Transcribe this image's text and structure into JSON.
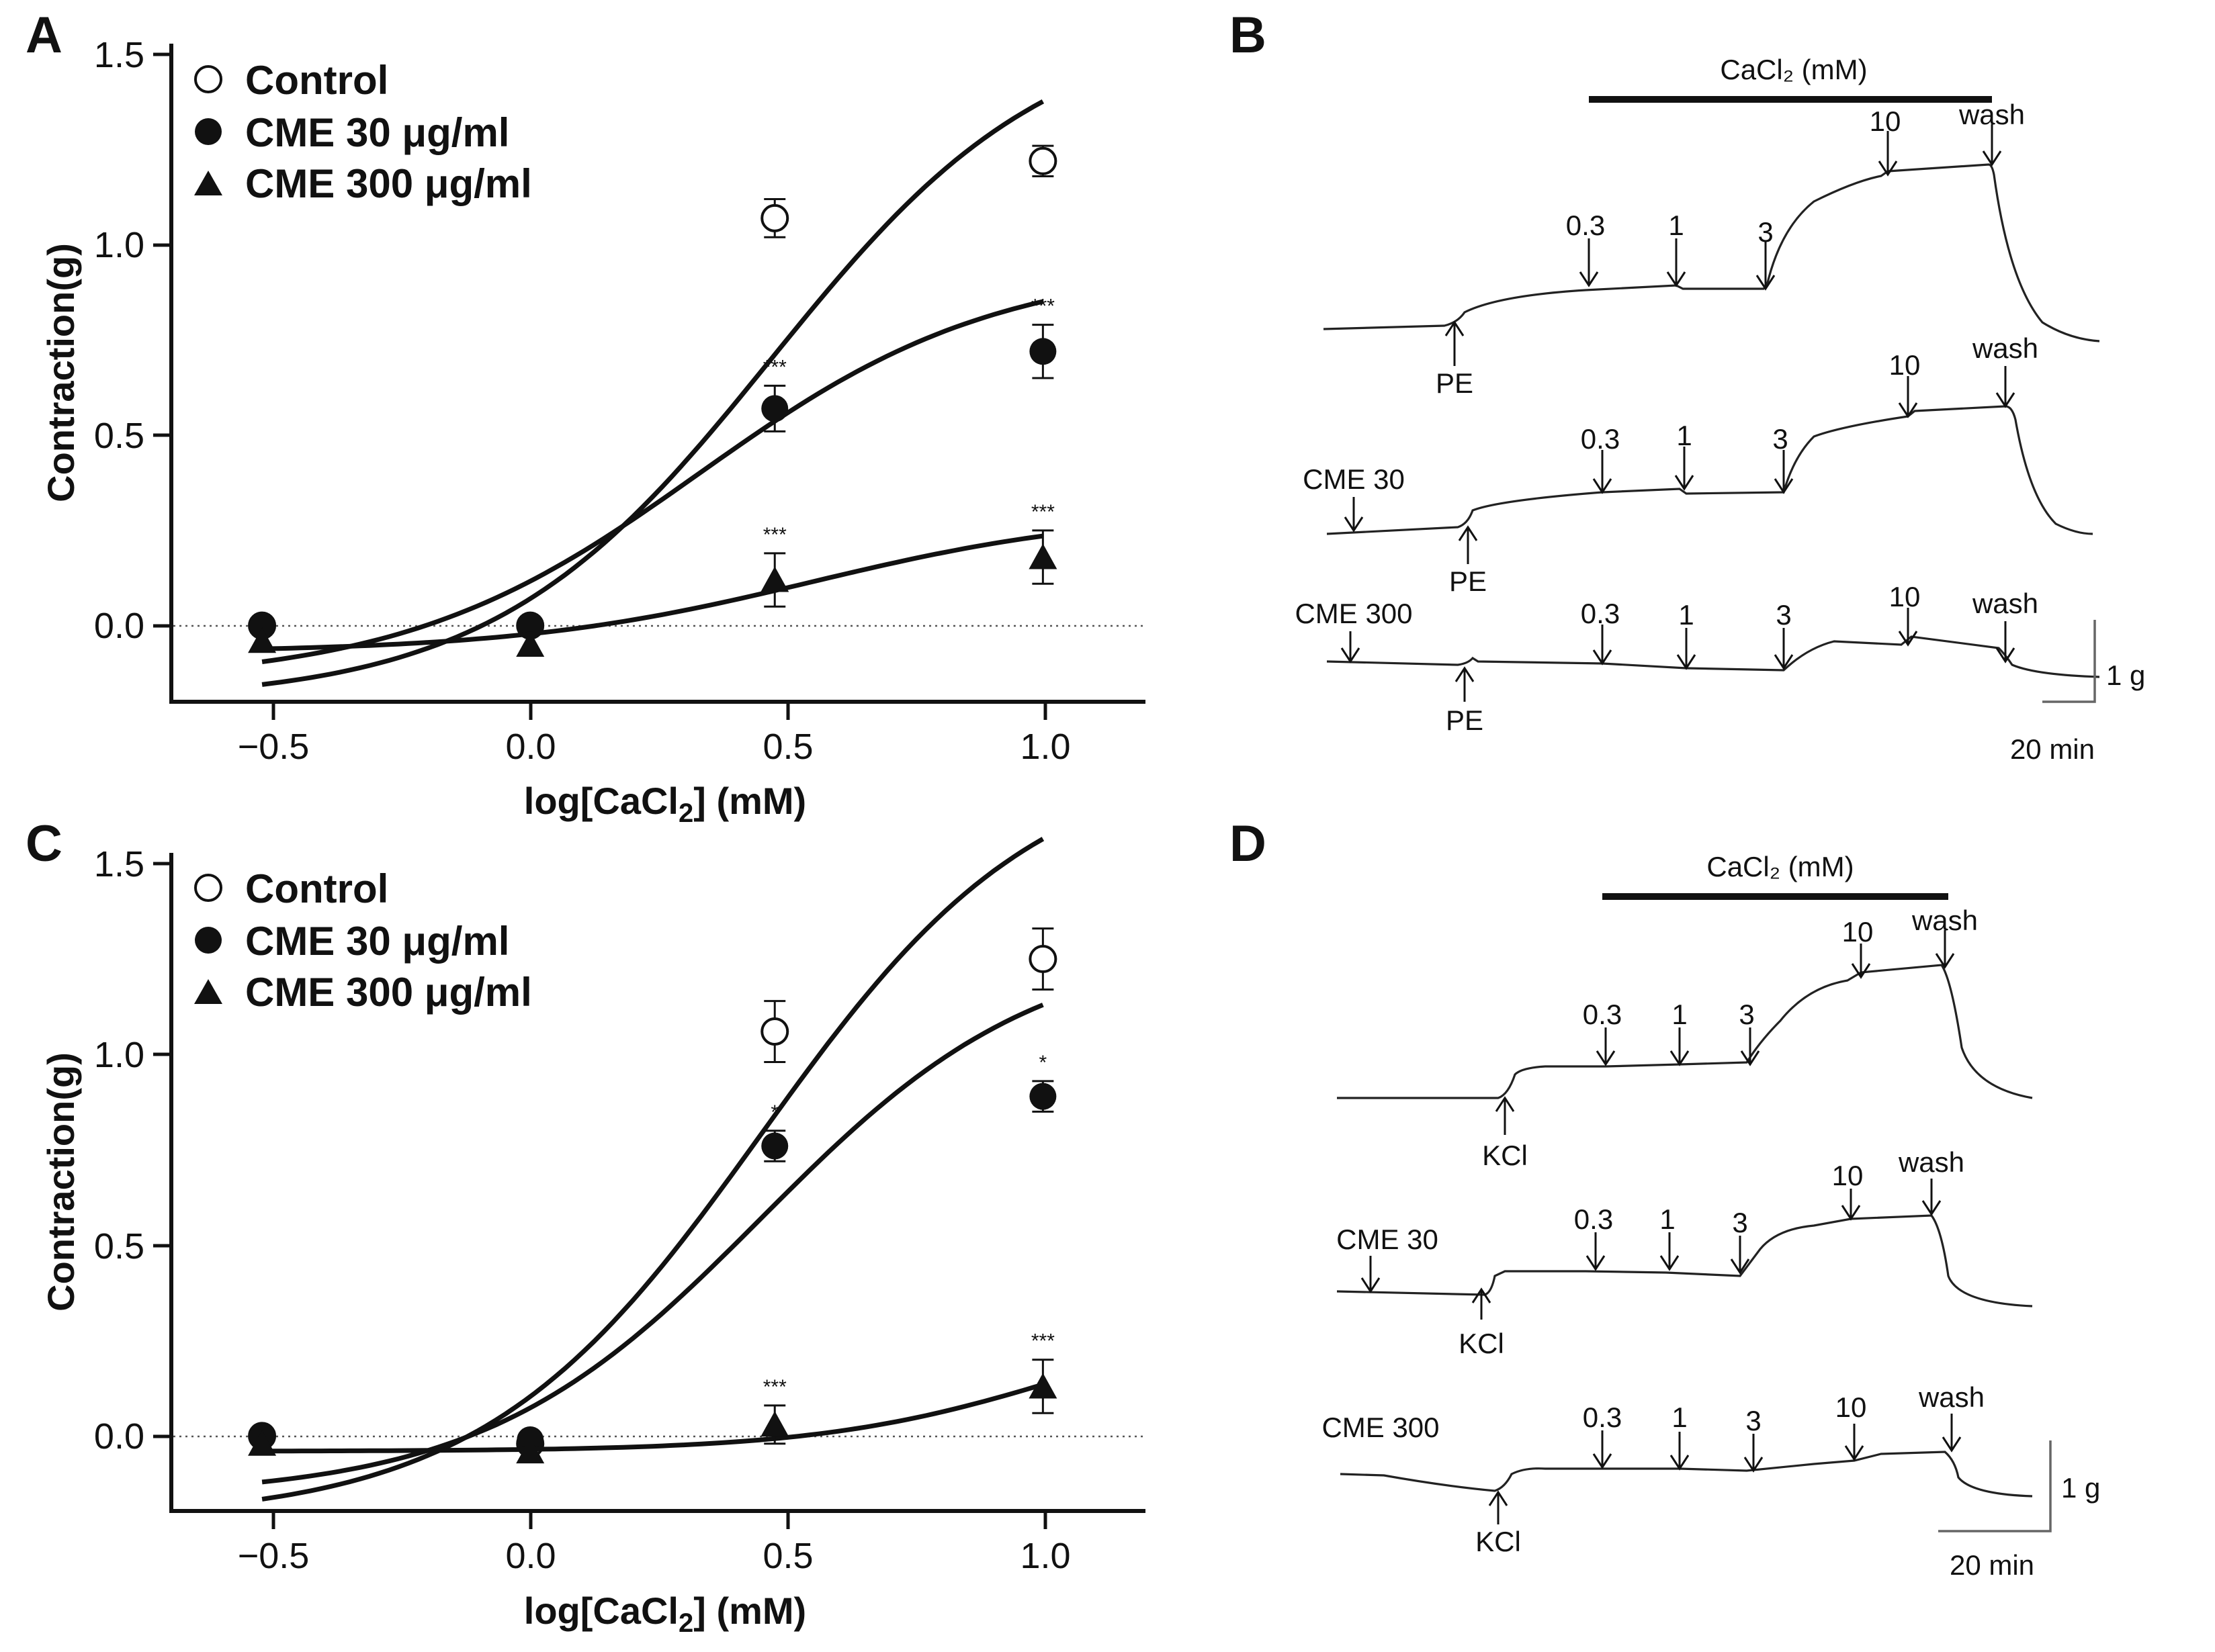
{
  "chart_data": [
    {
      "panel": "A",
      "type": "scatter",
      "ylabel": "Contraction(g)",
      "xlabel_base": "log[CaCl",
      "xlabel_sub": "2",
      "xlabel_tail": "] (mM)",
      "xlim": [
        -0.7,
        1.2
      ],
      "ylim": [
        -0.2,
        1.5
      ],
      "xticks": [
        -0.5,
        0.0,
        0.5,
        1.0
      ],
      "xtick_labels": [
        "−0.5",
        "0.0",
        "0.5",
        "1.0"
      ],
      "yticks": [
        0.0,
        0.5,
        1.0,
        1.5
      ],
      "ytick_labels": [
        "0.0",
        "0.5",
        "1.0",
        "1.5"
      ],
      "series": [
        {
          "name": "Control",
          "marker": "circle-open",
          "x": [
            -0.523,
            0.0,
            0.477,
            1.0
          ],
          "y": [
            0.0,
            0.0,
            1.07,
            1.22
          ],
          "err": [
            0.0,
            0.0,
            0.05,
            0.04
          ],
          "sig": [
            "",
            "",
            "",
            ""
          ],
          "fit": {
            "bottom": -0.2,
            "top": 1.6,
            "ec50log": 0.47,
            "hill": 1.6
          }
        },
        {
          "name": "CME 30 μg/ml",
          "marker": "circle-filled",
          "x": [
            -0.523,
            0.0,
            0.477,
            1.0
          ],
          "y": [
            0.0,
            0.0,
            0.57,
            0.72
          ],
          "err": [
            0.0,
            0.0,
            0.06,
            0.07
          ],
          "sig": [
            "",
            "",
            "***",
            "***"
          ],
          "fit": {
            "bottom": -0.15,
            "top": 0.95,
            "ec50log": 0.33,
            "hill": 1.5
          }
        },
        {
          "name": "CME 300 μg/ml",
          "marker": "triangle-filled",
          "x": [
            -0.523,
            0.0,
            0.477,
            1.0
          ],
          "y": [
            -0.04,
            -0.05,
            0.12,
            0.18
          ],
          "err": [
            0.0,
            0.0,
            0.07,
            0.07
          ],
          "sig": [
            "",
            "",
            "***",
            "***"
          ],
          "fit": {
            "bottom": -0.07,
            "top": 0.3,
            "ec50log": 0.55,
            "hill": 1.5
          }
        }
      ]
    },
    {
      "panel": "C",
      "type": "scatter",
      "ylabel": "Contraction(g)",
      "xlabel_base": "log[CaCl",
      "xlabel_sub": "2",
      "xlabel_tail": "] (mM)",
      "xlim": [
        -0.7,
        1.2
      ],
      "ylim": [
        -0.2,
        1.5
      ],
      "xticks": [
        -0.5,
        0.0,
        0.5,
        1.0
      ],
      "xtick_labels": [
        "−0.5",
        "0.0",
        "0.5",
        "1.0"
      ],
      "yticks": [
        0.0,
        0.5,
        1.0,
        1.5
      ],
      "ytick_labels": [
        "0.0",
        "0.5",
        "1.0",
        "1.5"
      ],
      "series": [
        {
          "name": "Control",
          "marker": "circle-open",
          "x": [
            -0.523,
            0.0,
            0.477,
            1.0
          ],
          "y": [
            0.0,
            -0.02,
            1.06,
            1.25
          ],
          "err": [
            0.0,
            0.0,
            0.08,
            0.08
          ],
          "sig": [
            "",
            "",
            "",
            ""
          ],
          "fit": {
            "bottom": -0.22,
            "top": 1.8,
            "ec50log": 0.45,
            "hill": 1.6
          }
        },
        {
          "name": "CME 30 μg/ml",
          "marker": "circle-filled",
          "x": [
            -0.523,
            0.0,
            0.477,
            1.0
          ],
          "y": [
            0.0,
            -0.01,
            0.76,
            0.89
          ],
          "err": [
            0.0,
            0.0,
            0.04,
            0.04
          ],
          "sig": [
            "",
            "",
            "*",
            "*"
          ],
          "fit": {
            "bottom": -0.16,
            "top": 1.3,
            "ec50log": 0.45,
            "hill": 1.6
          }
        },
        {
          "name": "CME 300 μg/ml",
          "marker": "triangle-filled",
          "x": [
            -0.523,
            0.0,
            0.477,
            1.0
          ],
          "y": [
            -0.02,
            -0.04,
            0.03,
            0.13
          ],
          "err": [
            0.0,
            0.0,
            0.05,
            0.07
          ],
          "sig": [
            "",
            "",
            "***",
            "***"
          ],
          "fit": {
            "bottom": -0.04,
            "top": 0.35,
            "ec50log": 1.05,
            "hill": 1.8
          }
        }
      ]
    }
  ],
  "panels": {
    "A": {
      "letter": "A"
    },
    "B": {
      "letter": "B",
      "bar_label": "CaCl₂ (mM)",
      "dose_labels": [
        "0.3",
        "1",
        "3",
        "10"
      ],
      "wash_label": "wash",
      "agonist_label": "PE",
      "trace_labels": [
        "",
        "CME 30",
        "CME 300"
      ],
      "scale_y_label": "1 g",
      "scale_x_label": "20 min"
    },
    "C": {
      "letter": "C"
    },
    "D": {
      "letter": "D",
      "bar_label": "CaCl₂ (mM)",
      "dose_labels": [
        "0.3",
        "1",
        "3",
        "10"
      ],
      "wash_label": "wash",
      "agonist_label": "KCl",
      "trace_labels": [
        "",
        "CME 30",
        "CME 300"
      ],
      "scale_y_label": "1 g",
      "scale_x_label": "20 min"
    }
  }
}
